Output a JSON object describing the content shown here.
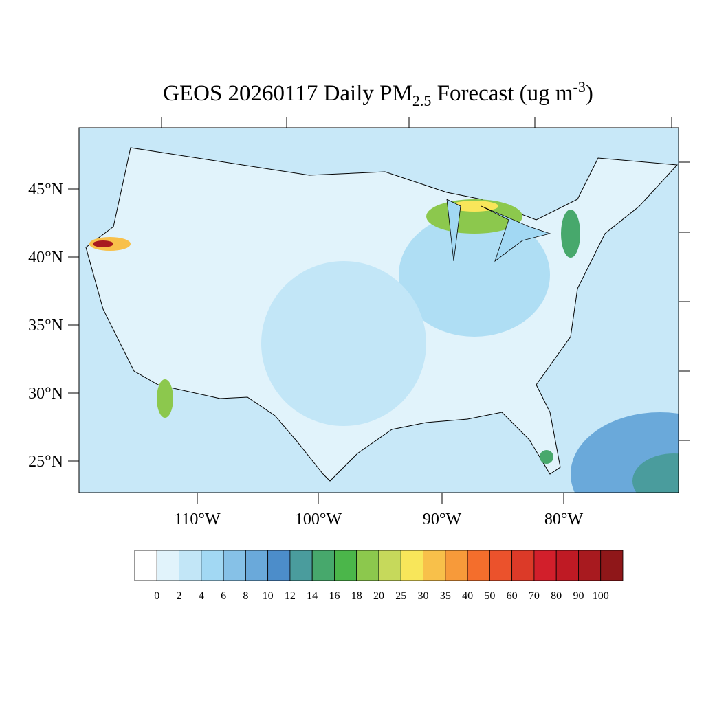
{
  "title": {
    "main": "GEOS 20260117 Daily PM",
    "sub": "2.5",
    "mid": " Forecast (ug m",
    "sup": "-3",
    "end": ")"
  },
  "lat_labels": [
    "45°N",
    "40°N",
    "35°N",
    "30°N",
    "25°N"
  ],
  "lon_labels": [
    "110°W",
    "100°W",
    "90°W",
    "80°W"
  ],
  "colorbar": {
    "levels": [
      0,
      2,
      4,
      6,
      8,
      10,
      12,
      14,
      16,
      18,
      20,
      25,
      30,
      35,
      40,
      50,
      60,
      70,
      80,
      90,
      100
    ],
    "colors": [
      "#ffffff",
      "#e1f3fb",
      "#c2e6f7",
      "#a2d8f3",
      "#86c1e7",
      "#6aa9da",
      "#4c8dca",
      "#4a9c9d",
      "#47a86c",
      "#4bb64a",
      "#8cc84d",
      "#c6d95b",
      "#f8e65a",
      "#f8c04a",
      "#f79a3a",
      "#f46e2c",
      "#eb522c",
      "#dc3a28",
      "#d21f2b",
      "#bf1a24",
      "#a81a1f",
      "#8f1719"
    ]
  }
}
